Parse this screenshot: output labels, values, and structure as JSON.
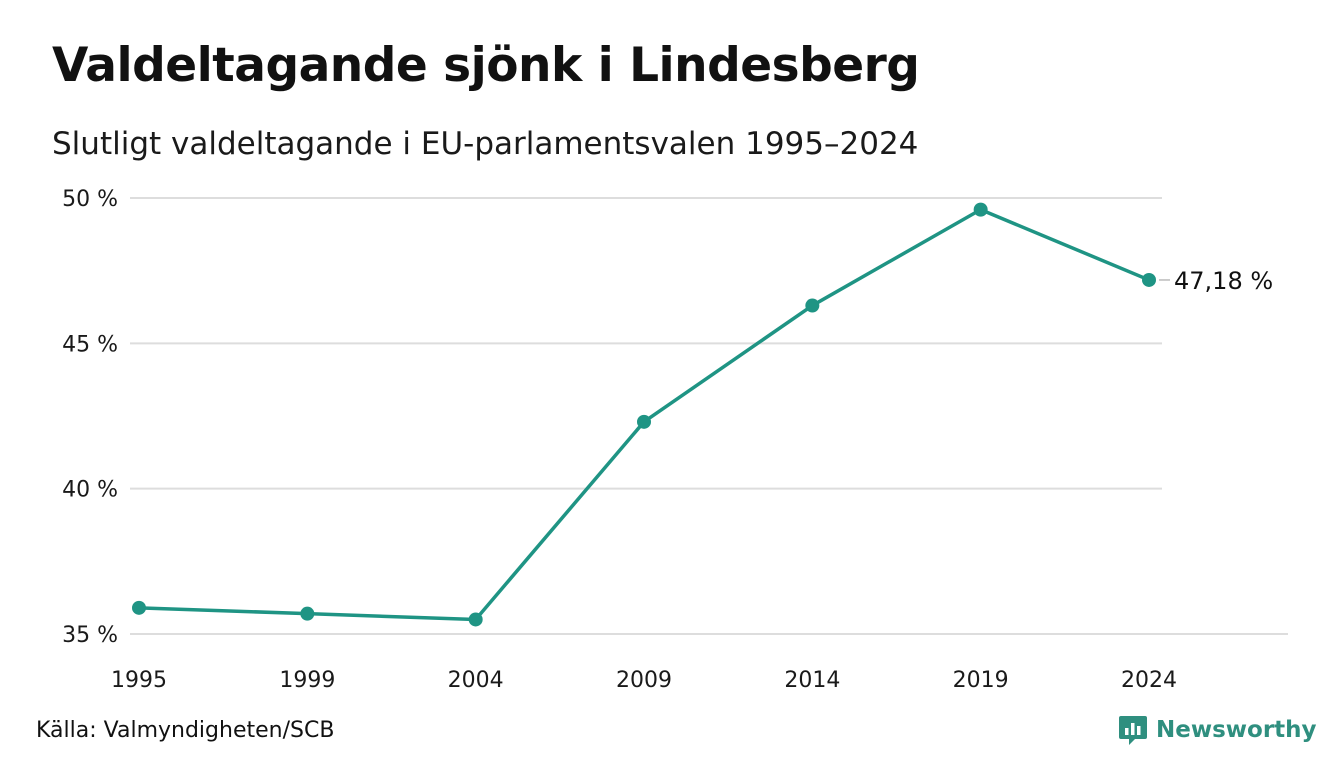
{
  "header": {
    "title": "Valdeltagande sjönk i Lindesberg",
    "subtitle": "Slutligt valdeltagande i EU-parlamentsvalen 1995–2024"
  },
  "footer": {
    "source": "Källa: Valmyndigheten/SCB",
    "brand": "Newsworthy",
    "brand_icon": "newsworthy-logo-icon"
  },
  "colors": {
    "line": "#1f9484",
    "grid": "#dddddd",
    "brand": "#2f8f7f"
  },
  "chart_data": {
    "type": "line",
    "title": "Valdeltagande sjönk i Lindesberg",
    "subtitle": "Slutligt valdeltagande i EU-parlamentsvalen 1995–2024",
    "categories": [
      "1995",
      "1999",
      "2004",
      "2009",
      "2014",
      "2019",
      "2024"
    ],
    "series": [
      {
        "values": [
          35.9,
          35.7,
          35.5,
          42.3,
          46.3,
          49.6,
          47.18
        ]
      }
    ],
    "yticks": [
      35,
      40,
      45,
      50
    ],
    "ytick_labels": [
      "35 %",
      "40 %",
      "45 %",
      "50 %"
    ],
    "ylim": [
      35,
      50
    ],
    "grid": true,
    "end_label": "47,18 %",
    "xlabel": "",
    "ylabel": ""
  }
}
